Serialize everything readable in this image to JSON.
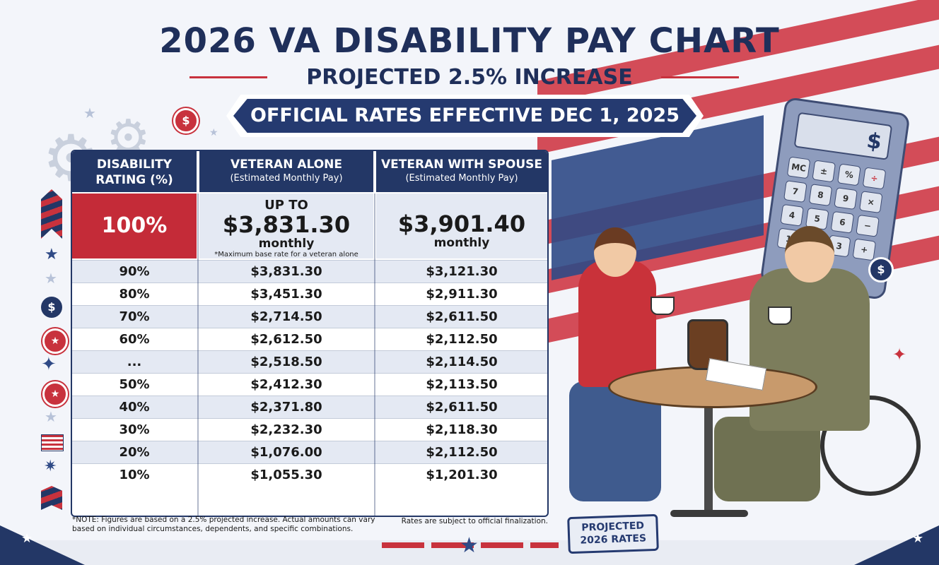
{
  "header": {
    "title": "2026 VA DISABILITY PAY CHART",
    "subtitle": "PROJECTED 2.5% INCREASE",
    "banner": "OFFICIAL RATES EFFECTIVE DEC 1, 2025"
  },
  "table": {
    "headers": [
      {
        "line1": "DISABILITY",
        "line2": "RATING (%)"
      },
      {
        "line1": "VETERAN ALONE",
        "line2": "(Estimated Monthly Pay)"
      },
      {
        "line1": "VETERAN WITH SPOUSE",
        "line2": "(Estimated Monthly Pay)"
      }
    ],
    "hero": {
      "rating": "100%",
      "alone_prefix": "UP TO",
      "alone_amount": "$3,831.30",
      "alone_unit": "monthly",
      "alone_note": "*Maximum base rate for a veteran alone",
      "spouse_amount": "$3,901.40",
      "spouse_unit": "monthly"
    },
    "rows": [
      {
        "rating": "90%",
        "alone": "$3,831.30",
        "spouse": "$3,121.30"
      },
      {
        "rating": "80%",
        "alone": "$3,451.30",
        "spouse": "$2,911.30"
      },
      {
        "rating": "70%",
        "alone": "$2,714.50",
        "spouse": "$2,611.50"
      },
      {
        "rating": "60%",
        "alone": "$2,612.50",
        "spouse": "$2,112.50"
      },
      {
        "rating": "...",
        "alone": "$2,518.50",
        "spouse": "$2,114.50"
      },
      {
        "rating": "50%",
        "alone": "$2,412.30",
        "spouse": "$2,113.50"
      },
      {
        "rating": "40%",
        "alone": "$2,371.80",
        "spouse": "$2,611.50"
      },
      {
        "rating": "30%",
        "alone": "$2,232.30",
        "spouse": "$2,118.30"
      },
      {
        "rating": "20%",
        "alone": "$1,076.00",
        "spouse": "$2,112.50"
      },
      {
        "rating": "10%",
        "alone": "$1,055.30",
        "spouse": "$1,201.30"
      }
    ]
  },
  "notes": {
    "left": "*NOTE: Figures are based on a 2.5% projected increase. Actual amounts can vary based on individual circumstances, dependents, and specific combinations.",
    "right": "Rates are subject to official finalization."
  },
  "stamp": {
    "line1": "PROJECTED",
    "line2": "2026 RATES"
  },
  "calculator": {
    "screen": "$",
    "keys": [
      "MC",
      "±",
      "%",
      "÷",
      "7",
      "8",
      "9",
      "×",
      "4",
      "5",
      "6",
      "−",
      "1",
      "2",
      "3",
      "+"
    ]
  },
  "icons": {
    "dollar_glyph": "$",
    "colors": {
      "navy": "#233766",
      "red": "#c42b38",
      "row_alt": "#e4e9f3"
    }
  }
}
